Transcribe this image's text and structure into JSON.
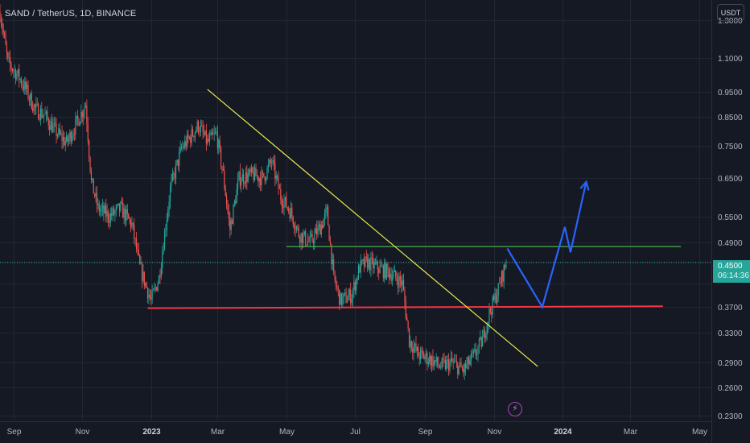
{
  "header": {
    "symbol_title": "SAND / TetherUS, 1D, BINANCE",
    "currency_button": "USDT"
  },
  "price_tag": {
    "last_price": "0.4500",
    "countdown": "06:14:36",
    "color": "#26a69a"
  },
  "event_icon": "lightning-icon",
  "colors": {
    "up_candle": "#26a69a",
    "down_candle": "#ef5350",
    "trendline": "#e8e84a",
    "support_line": "#f23645",
    "resistance_line": "#4caf50",
    "projection": "#2962ff"
  },
  "chart_data": {
    "type": "candlestick",
    "title": "SAND / TetherUS, 1D, BINANCE",
    "y_scale": "log",
    "ylim": [
      0.225,
      1.42
    ],
    "y_ticks": [
      1.3,
      1.1,
      0.95,
      0.85,
      0.75,
      0.65,
      0.55,
      0.49,
      0.45,
      0.41,
      0.37,
      0.33,
      0.29,
      0.26,
      0.23
    ],
    "y_tick_labels": [
      "1.3000",
      "1.1000",
      "0.9500",
      "0.8500",
      "0.7500",
      "0.6500",
      "0.5500",
      "0.4900",
      "",
      "",
      "0.3700",
      "0.3300",
      "0.2900",
      "0.2600",
      "0.2300"
    ],
    "xlim": [
      "2022-08-20",
      "2024-05-12"
    ],
    "x_ticks": [
      {
        "date": "2022-09-01",
        "label": "Sep"
      },
      {
        "date": "2022-11-01",
        "label": "Nov"
      },
      {
        "date": "2023-01-01",
        "label": "2023",
        "bold": true
      },
      {
        "date": "2023-03-01",
        "label": "Mar"
      },
      {
        "date": "2023-05-01",
        "label": "May"
      },
      {
        "date": "2023-07-01",
        "label": "Jul"
      },
      {
        "date": "2023-09-01",
        "label": "Sep"
      },
      {
        "date": "2023-11-01",
        "label": "Nov"
      },
      {
        "date": "2024-01-01",
        "label": "2024",
        "bold": true
      },
      {
        "date": "2024-03-01",
        "label": "Mar"
      },
      {
        "date": "2024-05-01",
        "label": "May"
      }
    ],
    "price_path": [
      [
        "2022-08-20",
        1.35
      ],
      [
        "2022-08-27",
        1.08
      ],
      [
        "2022-09-05",
        1.02
      ],
      [
        "2022-09-12",
        0.96
      ],
      [
        "2022-09-20",
        0.88
      ],
      [
        "2022-09-28",
        0.86
      ],
      [
        "2022-10-08",
        0.8
      ],
      [
        "2022-10-18",
        0.76
      ],
      [
        "2022-10-26",
        0.82
      ],
      [
        "2022-11-04",
        0.9
      ],
      [
        "2022-11-09",
        0.64
      ],
      [
        "2022-11-15",
        0.57
      ],
      [
        "2022-11-25",
        0.55
      ],
      [
        "2022-12-05",
        0.57
      ],
      [
        "2022-12-15",
        0.53
      ],
      [
        "2022-12-22",
        0.44
      ],
      [
        "2023-01-01",
        0.38
      ],
      [
        "2023-01-08",
        0.42
      ],
      [
        "2023-01-18",
        0.62
      ],
      [
        "2023-01-28",
        0.74
      ],
      [
        "2023-02-05",
        0.78
      ],
      [
        "2023-02-12",
        0.82
      ],
      [
        "2023-02-20",
        0.76
      ],
      [
        "2023-02-28",
        0.79
      ],
      [
        "2023-03-06",
        0.66
      ],
      [
        "2023-03-12",
        0.52
      ],
      [
        "2023-03-20",
        0.65
      ],
      [
        "2023-04-01",
        0.66
      ],
      [
        "2023-04-10",
        0.65
      ],
      [
        "2023-04-18",
        0.7
      ],
      [
        "2023-04-26",
        0.6
      ],
      [
        "2023-05-05",
        0.56
      ],
      [
        "2023-05-12",
        0.51
      ],
      [
        "2023-05-22",
        0.49
      ],
      [
        "2023-06-01",
        0.53
      ],
      [
        "2023-06-06",
        0.56
      ],
      [
        "2023-06-12",
        0.42
      ],
      [
        "2023-06-18",
        0.38
      ],
      [
        "2023-06-28",
        0.39
      ],
      [
        "2023-07-05",
        0.44
      ],
      [
        "2023-07-12",
        0.45
      ],
      [
        "2023-07-20",
        0.44
      ],
      [
        "2023-08-01",
        0.43
      ],
      [
        "2023-08-12",
        0.41
      ],
      [
        "2023-08-18",
        0.32
      ],
      [
        "2023-08-26",
        0.3
      ],
      [
        "2023-09-05",
        0.295
      ],
      [
        "2023-09-15",
        0.285
      ],
      [
        "2023-09-25",
        0.29
      ],
      [
        "2023-10-05",
        0.28
      ],
      [
        "2023-10-15",
        0.3
      ],
      [
        "2023-10-22",
        0.32
      ],
      [
        "2023-10-28",
        0.36
      ],
      [
        "2023-11-05",
        0.4
      ],
      [
        "2023-11-12",
        0.45
      ]
    ],
    "drawings": {
      "descending_trendline": {
        "from": [
          "2023-02-20",
          0.96
        ],
        "to": [
          "2023-12-10",
          0.285
        ]
      },
      "support_line": {
        "from": [
          "2022-12-29",
          0.368
        ],
        "to": [
          "2024-03-30",
          0.371
        ]
      },
      "resistance_line": {
        "from": [
          "2023-05-01",
          0.482
        ],
        "to": [
          "2024-04-15",
          0.482
        ]
      },
      "projection_path": [
        [
          "2023-11-13",
          0.478
        ],
        [
          "2023-12-14",
          0.37
        ],
        [
          "2024-01-03",
          0.525
        ],
        [
          "2024-01-08",
          0.47
        ],
        [
          "2024-01-22",
          0.64
        ]
      ]
    }
  }
}
